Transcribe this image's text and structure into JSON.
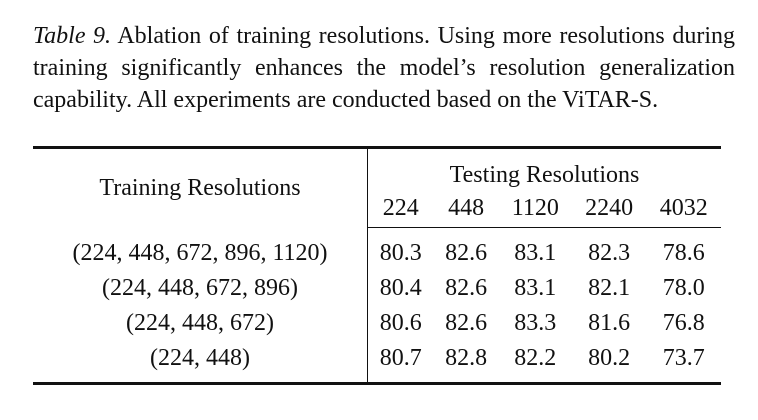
{
  "caption": {
    "label": "Table 9.",
    "text": "Ablation of training resolutions. Using more resolutions during training significantly enhances the model’s resolution generalization capability. All experiments are conducted based on the ViTAR-S."
  },
  "table": {
    "row_header": "Training Resolutions",
    "column_group": "Testing Resolutions",
    "columns": [
      "224",
      "448",
      "1120",
      "2240",
      "4032"
    ],
    "rows": [
      {
        "label": "(224, 448, 672, 896, 1120)",
        "values": [
          "80.3",
          "82.6",
          "83.1",
          "82.3",
          "78.6"
        ]
      },
      {
        "label": "(224, 448, 672, 896)",
        "values": [
          "80.4",
          "82.6",
          "83.1",
          "82.1",
          "78.0"
        ]
      },
      {
        "label": "(224, 448, 672)",
        "values": [
          "80.6",
          "82.6",
          "83.3",
          "81.6",
          "76.8"
        ]
      },
      {
        "label": "(224, 448)",
        "values": [
          "80.7",
          "82.8",
          "82.2",
          "80.2",
          "73.7"
        ]
      }
    ]
  }
}
